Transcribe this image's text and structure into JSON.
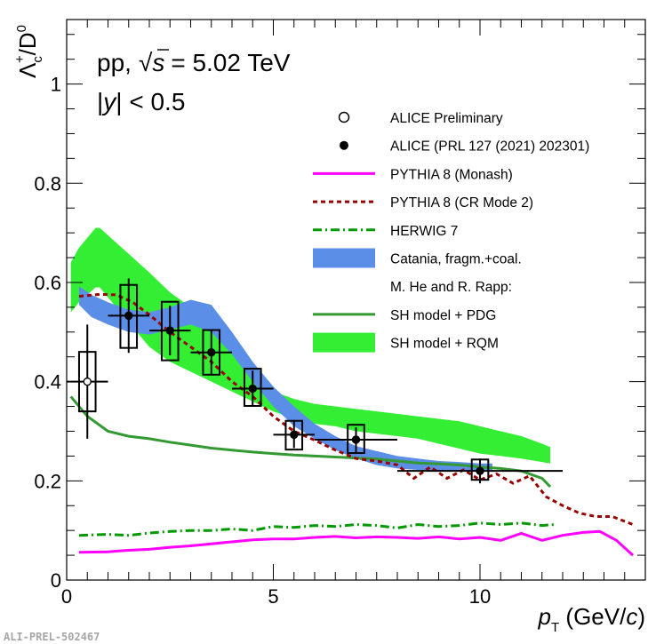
{
  "footer_label": "ALI-PREL-502467",
  "chart_data": {
    "type": "line",
    "title_lines": [
      "pp, √s = 5.02 TeV",
      "|y| < 0.5"
    ],
    "title_parts": {
      "pp": "pp,",
      "sqrt": "√",
      "s": "s",
      "energy": "= 5.02 TeV",
      "y_open": "|",
      "y": "y",
      "y_close": "| < 0.5"
    },
    "ylabel": "Λc+/D0",
    "ylabel_parts": {
      "lambda": "Λ",
      "sub": "c",
      "sup": "+",
      "slash": "/D",
      "sup0": "0"
    },
    "xlabel": "pT (GeV/c)",
    "xlabel_parts": {
      "p": "p",
      "sub": "T",
      "unit_open": " (GeV/",
      "c": "c",
      "unit_close": ")"
    },
    "xlim": [
      0,
      14
    ],
    "ylim": [
      0,
      1.13
    ],
    "x_ticks": [
      0,
      5,
      10
    ],
    "x_tick_labels": [
      "0",
      "5",
      "10"
    ],
    "y_ticks": [
      0,
      0.2,
      0.4,
      0.6,
      0.8,
      1
    ],
    "y_tick_labels": [
      "0",
      "0.2",
      "0.4",
      "0.6",
      "0.8",
      "1"
    ],
    "colors": {
      "monash": "#ff00ff",
      "crmode2": "#990000",
      "herwig": "#009900",
      "catania": "#3366cc",
      "catania_fill": "#5b8ee6",
      "pdg": "#339933",
      "rqm": "#33ee33"
    },
    "legend": [
      {
        "key": "alice_prelim",
        "label": "ALICE Preliminary"
      },
      {
        "key": "alice_prl",
        "label": "ALICE (PRL 127 (2021) 202301)"
      },
      {
        "key": "monash",
        "label": "PYTHIA 8 (Monash)"
      },
      {
        "key": "crmode2",
        "label": "PYTHIA 8 (CR Mode 2)"
      },
      {
        "key": "herwig",
        "label": "HERWIG 7"
      },
      {
        "key": "catania",
        "label": "Catania, fragm.+coal."
      },
      {
        "key": "header",
        "label": "M. He and R. Rapp:"
      },
      {
        "key": "pdg",
        "label": "SH model + PDG"
      },
      {
        "key": "rqm",
        "label": "SH model + RQM"
      }
    ],
    "series": [
      {
        "name": "ALICE Preliminary",
        "points": [
          {
            "x": 0.5,
            "y": 0.4,
            "xerr": 0.5,
            "stat": 0.115,
            "syst_lo": 0.06,
            "syst_hi": 0.06,
            "box_hw": 0.2
          }
        ]
      },
      {
        "name": "ALICE (PRL 127 (2021) 202301)",
        "points": [
          {
            "x": 1.5,
            "y": 0.533,
            "xerr": 0.5,
            "stat": 0.075,
            "syst_lo": 0.065,
            "syst_hi": 0.062,
            "box_hw": 0.2
          },
          {
            "x": 2.5,
            "y": 0.503,
            "xerr": 0.5,
            "stat": 0.05,
            "syst_lo": 0.06,
            "syst_hi": 0.058,
            "box_hw": 0.2
          },
          {
            "x": 3.5,
            "y": 0.459,
            "xerr": 0.5,
            "stat": 0.045,
            "syst_lo": 0.045,
            "syst_hi": 0.045,
            "box_hw": 0.2
          },
          {
            "x": 4.5,
            "y": 0.386,
            "xerr": 0.5,
            "stat": 0.036,
            "syst_lo": 0.035,
            "syst_hi": 0.04,
            "box_hw": 0.2
          },
          {
            "x": 5.5,
            "y": 0.293,
            "xerr": 0.5,
            "stat": 0.027,
            "syst_lo": 0.03,
            "syst_hi": 0.028,
            "box_hw": 0.2
          },
          {
            "x": 7.0,
            "y": 0.283,
            "xerr": 1.0,
            "stat": 0.025,
            "syst_lo": 0.027,
            "syst_hi": 0.03,
            "box_hw": 0.2
          },
          {
            "x": 10.0,
            "y": 0.22,
            "xerr": 2.0,
            "stat": 0.025,
            "syst_lo": 0.018,
            "syst_hi": 0.023,
            "box_hw": 0.2
          }
        ]
      },
      {
        "name": "PYTHIA 8 (Monash)",
        "x": [
          0.3,
          1.0,
          1.5,
          2.0,
          2.5,
          3.0,
          3.5,
          4.0,
          4.5,
          5.0,
          5.5,
          6.0,
          6.5,
          7.0,
          7.5,
          8.0,
          8.5,
          9.0,
          9.5,
          10.0,
          10.5,
          11.0,
          11.5,
          12.0,
          12.5,
          12.9,
          13.3,
          13.7
        ],
        "values": [
          0.056,
          0.057,
          0.06,
          0.062,
          0.066,
          0.069,
          0.073,
          0.077,
          0.081,
          0.083,
          0.083,
          0.086,
          0.088,
          0.085,
          0.087,
          0.086,
          0.084,
          0.087,
          0.083,
          0.086,
          0.08,
          0.094,
          0.08,
          0.09,
          0.096,
          0.098,
          0.08,
          0.05
        ]
      },
      {
        "name": "PYTHIA 8 (CR Mode 2)",
        "x": [
          0.3,
          0.8,
          1.2,
          1.6,
          2.0,
          2.5,
          3.0,
          3.5,
          4.0,
          4.5,
          5.0,
          5.5,
          6.0,
          6.5,
          7.0,
          7.5,
          8.0,
          8.4,
          8.8,
          9.2,
          9.6,
          10.0,
          10.4,
          10.8,
          11.2,
          11.6,
          12.0,
          12.4,
          12.8,
          13.2,
          13.7
        ],
        "values": [
          0.572,
          0.576,
          0.575,
          0.56,
          0.535,
          0.5,
          0.47,
          0.44,
          0.4,
          0.37,
          0.33,
          0.3,
          0.282,
          0.262,
          0.245,
          0.24,
          0.232,
          0.205,
          0.228,
          0.205,
          0.222,
          0.202,
          0.214,
          0.195,
          0.21,
          0.168,
          0.15,
          0.135,
          0.128,
          0.128,
          0.112
        ]
      },
      {
        "name": "HERWIG 7",
        "x": [
          0.3,
          1.0,
          1.5,
          2.0,
          2.5,
          3.0,
          3.5,
          4.0,
          4.5,
          5.0,
          5.5,
          6.0,
          6.5,
          7.0,
          7.5,
          8.0,
          8.5,
          9.0,
          9.5,
          10.0,
          10.5,
          11.0,
          11.5,
          11.8
        ],
        "values": [
          0.09,
          0.092,
          0.09,
          0.095,
          0.098,
          0.1,
          0.1,
          0.103,
          0.1,
          0.108,
          0.106,
          0.11,
          0.108,
          0.112,
          0.11,
          0.105,
          0.112,
          0.108,
          0.11,
          0.115,
          0.112,
          0.115,
          0.11,
          0.112
        ]
      },
      {
        "name": "Catania, fragm.+coal.",
        "x": [
          0.3,
          0.6,
          1.0,
          1.5,
          2.0,
          2.5,
          3.0,
          3.5,
          4.0,
          4.5,
          5.0,
          5.5,
          6.0,
          6.5,
          7.0,
          7.5,
          8.0,
          8.5,
          9.0,
          9.5,
          10.0,
          10.3
        ],
        "high": [
          0.592,
          0.575,
          0.56,
          0.545,
          0.54,
          0.55,
          0.565,
          0.555,
          0.5,
          0.44,
          0.39,
          0.35,
          0.315,
          0.29,
          0.27,
          0.26,
          0.25,
          0.245,
          0.24,
          0.238,
          0.235,
          0.235
        ],
        "low": [
          0.555,
          0.53,
          0.515,
          0.5,
          0.495,
          0.505,
          0.515,
          0.5,
          0.455,
          0.4,
          0.35,
          0.31,
          0.285,
          0.262,
          0.245,
          0.232,
          0.225,
          0.222,
          0.22,
          0.22,
          0.222,
          0.222
        ]
      },
      {
        "name": "SH model + PDG",
        "x": [
          0.1,
          0.5,
          1.0,
          1.5,
          2.0,
          2.5,
          3.0,
          3.5,
          4.0,
          4.5,
          5.0,
          5.5,
          6.0,
          6.5,
          7.0,
          7.5,
          8.0,
          8.5,
          9.0,
          9.5,
          10.0,
          10.5,
          11.0,
          11.5,
          11.7
        ],
        "values": [
          0.37,
          0.33,
          0.3,
          0.29,
          0.285,
          0.278,
          0.272,
          0.266,
          0.262,
          0.258,
          0.255,
          0.252,
          0.25,
          0.248,
          0.246,
          0.244,
          0.24,
          0.236,
          0.234,
          0.232,
          0.228,
          0.225,
          0.22,
          0.205,
          0.188
        ]
      },
      {
        "name": "SH model + RQM",
        "x": [
          0.1,
          0.3,
          0.7,
          0.8,
          1.2,
          1.6,
          2.0,
          2.5,
          3.0,
          3.5,
          4.0,
          4.5,
          5.0,
          5.5,
          6.0,
          6.5,
          7.0,
          7.5,
          8.0,
          8.5,
          9.0,
          9.5,
          10.0,
          10.5,
          11.0,
          11.5,
          11.7
        ],
        "high": [
          0.64,
          0.67,
          0.71,
          0.71,
          0.68,
          0.65,
          0.62,
          0.58,
          0.55,
          0.51,
          0.46,
          0.42,
          0.38,
          0.365,
          0.355,
          0.35,
          0.345,
          0.34,
          0.335,
          0.33,
          0.325,
          0.32,
          0.31,
          0.3,
          0.29,
          0.275,
          0.268
        ],
        "low": [
          0.54,
          0.56,
          0.59,
          0.59,
          0.55,
          0.51,
          0.47,
          0.44,
          0.42,
          0.4,
          0.38,
          0.36,
          0.34,
          0.325,
          0.315,
          0.31,
          0.3,
          0.295,
          0.29,
          0.285,
          0.275,
          0.265,
          0.255,
          0.25,
          0.245,
          0.238,
          0.235
        ]
      }
    ]
  }
}
